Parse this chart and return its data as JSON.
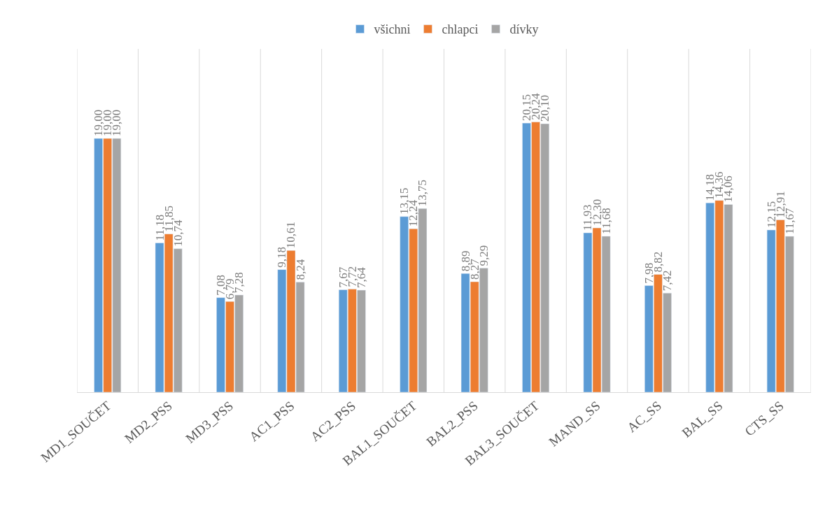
{
  "chart_data": {
    "type": "bar",
    "categories": [
      "MD1_SOUČET",
      "MD2_PSS",
      "MD3_PSS",
      "AC1_PSS",
      "AC2_PSS",
      "BAL1_SOUČET",
      "BAL2_PSS",
      "BAL3_SOUČET",
      "MAND_SS",
      "AC_SS",
      "BAL_SS",
      "CTS_SS"
    ],
    "series": [
      {
        "name": "všichni",
        "color": "#5b9bd5",
        "values": [
          19.0,
          11.18,
          7.08,
          9.18,
          7.67,
          13.15,
          8.89,
          20.15,
          11.93,
          7.98,
          14.18,
          12.15
        ],
        "value_labels": [
          "19,00",
          "11,18",
          "7,08",
          "9,18",
          "7,67",
          "13,15",
          "8,89",
          "20,15",
          "11,93",
          "7,98",
          "14,18",
          "12,15"
        ]
      },
      {
        "name": "chlapci",
        "color": "#ed7d31",
        "values": [
          19.0,
          11.85,
          6.79,
          10.61,
          7.72,
          12.24,
          8.27,
          20.24,
          12.3,
          8.82,
          14.36,
          12.91
        ],
        "value_labels": [
          "19,00",
          "11,85",
          "6,79",
          "10,61",
          "7,72",
          "12,24",
          "8,27",
          "20,24",
          "12,30",
          "8,82",
          "14,36",
          "12,91"
        ]
      },
      {
        "name": "dívky",
        "color": "#a5a5a5",
        "values": [
          19.0,
          10.74,
          7.28,
          8.24,
          7.64,
          13.75,
          9.29,
          20.1,
          11.68,
          7.42,
          14.06,
          11.67
        ],
        "value_labels": [
          "19,00",
          "10,74",
          "7,28",
          "8,24",
          "7,64",
          "13,75",
          "9,29",
          "20,10",
          "11,68",
          "7,42",
          "14,06",
          "11,67"
        ]
      }
    ],
    "grid": "x",
    "legend": "top"
  }
}
